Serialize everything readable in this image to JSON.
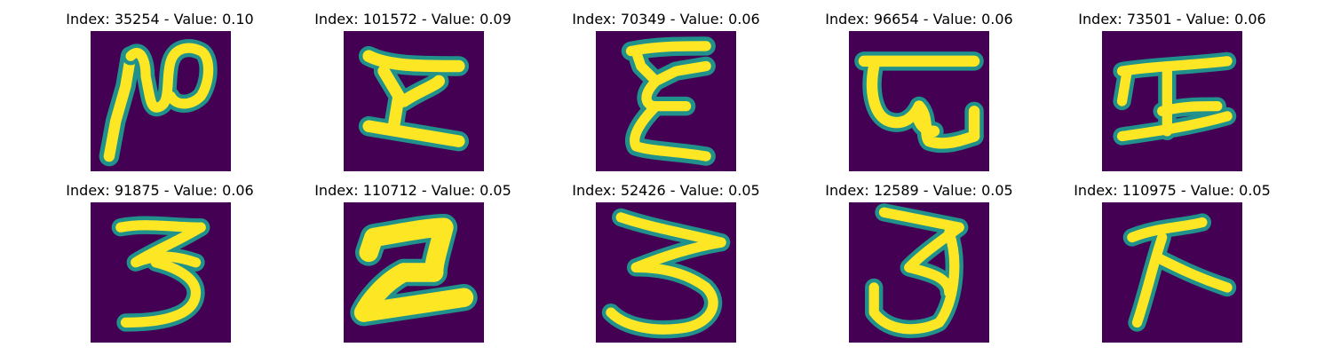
{
  "colors": {
    "background": "#440154",
    "mid": "#21918c",
    "stroke": "#fde725"
  },
  "panels": [
    {
      "title": "Index: 35254 - Value: 0.10"
    },
    {
      "title": "Index: 101572 - Value: 0.09"
    },
    {
      "title": "Index: 70349 - Value: 0.06"
    },
    {
      "title": "Index: 96654 - Value: 0.06"
    },
    {
      "title": "Index: 73501 - Value: 0.06"
    },
    {
      "title": "Index: 91875 - Value: 0.06"
    },
    {
      "title": "Index: 110712 - Value: 0.05"
    },
    {
      "title": "Index: 52426 - Value: 0.05"
    },
    {
      "title": "Index: 12589 - Value: 0.05"
    },
    {
      "title": "Index: 110975 - Value: 0.05"
    }
  ]
}
